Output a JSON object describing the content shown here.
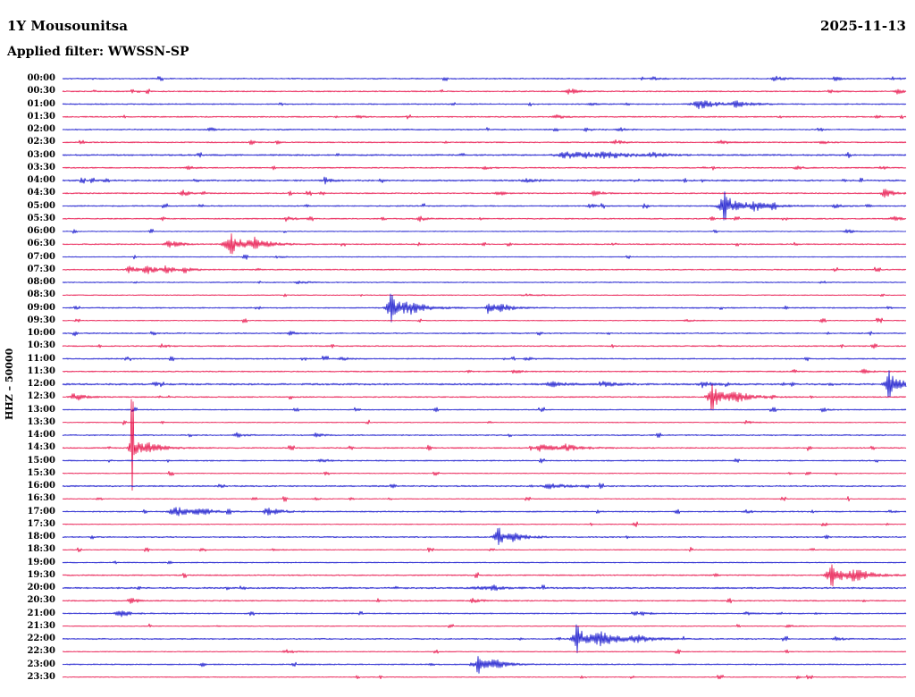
{
  "header": {
    "station": "1Y Mousounitsa",
    "date": "2025-11-13",
    "filter_label": "Applied filter: WWSSN-SP"
  },
  "axis": {
    "channel_label": "HHZ – 50000"
  },
  "colors": {
    "trace_blue": "#1414cc",
    "trace_red": "#e8124a",
    "text": "#000000",
    "background": "#ffffff"
  },
  "chart_data": {
    "type": "line",
    "subtype": "helicorder",
    "title": "1Y Mousounitsa",
    "date": "2025-11-13",
    "channel": "HHZ",
    "scale": "50000",
    "filter": "WWSSN-SP",
    "row_duration_minutes": 30,
    "event_format": "each event = [position_fraction_of_row, amplitude_px, width_fraction, optional_spike_px]",
    "rows": [
      {
        "t": "00:00",
        "c": "blue",
        "ev": [
          [
            0.7,
            2,
            0.004
          ],
          [
            0.845,
            3,
            0.006
          ],
          [
            0.915,
            2.5,
            0.005
          ],
          [
            0.985,
            2,
            0.004
          ]
        ]
      },
      {
        "t": "00:30",
        "c": "red",
        "ev": [
          [
            0.6,
            3.5,
            0.006
          ],
          [
            0.91,
            2,
            0.004
          ],
          [
            0.99,
            2.5,
            0.005
          ]
        ]
      },
      {
        "t": "01:00",
        "c": "blue",
        "ev": [
          [
            0.625,
            1.5,
            0.004
          ],
          [
            0.755,
            5,
            0.012
          ],
          [
            0.8,
            3,
            0.01
          ]
        ]
      },
      {
        "t": "01:30",
        "c": "red",
        "ev": [
          [
            0.35,
            1.5,
            0.004
          ],
          [
            0.585,
            2.5,
            0.005
          ]
        ]
      },
      {
        "t": "02:00",
        "c": "blue",
        "ev": [
          [
            0.175,
            2,
            0.004
          ],
          [
            0.62,
            2,
            0.004
          ],
          [
            0.66,
            2.5,
            0.004
          ]
        ]
      },
      {
        "t": "02:30",
        "c": "red",
        "ev": [
          [
            0.655,
            2.5,
            0.005
          ],
          [
            0.78,
            2.5,
            0.005
          ],
          [
            0.9,
            2,
            0.004
          ]
        ]
      },
      {
        "t": "03:00",
        "c": "blue",
        "base": 0.9,
        "ev": [
          [
            0.6,
            3.5,
            0.02
          ],
          [
            0.645,
            3.5,
            0.012
          ],
          [
            0.7,
            2.5,
            0.008
          ]
        ]
      },
      {
        "t": "03:30",
        "c": "red",
        "ev": [
          [
            0.148,
            2.5,
            0.004
          ],
          [
            0.5,
            2,
            0.004
          ],
          [
            0.87,
            2,
            0.004
          ],
          [
            0.97,
            2,
            0.004
          ]
        ]
      },
      {
        "t": "04:00",
        "c": "blue",
        "base": 0.9,
        "ev": [
          [
            0.31,
            2,
            0.006
          ],
          [
            0.55,
            1.5,
            0.01
          ]
        ]
      },
      {
        "t": "04:30",
        "c": "red",
        "ev": [
          [
            0.143,
            3,
            0.005
          ],
          [
            0.515,
            2,
            0.004
          ],
          [
            0.63,
            3,
            0.005
          ],
          [
            0.975,
            4.5,
            0.006
          ]
        ]
      },
      {
        "t": "05:00",
        "c": "blue",
        "ev": [
          [
            0.625,
            2.5,
            0.004
          ],
          [
            0.785,
            12,
            0.01,
            18
          ],
          [
            0.82,
            4,
            0.012
          ],
          [
            0.915,
            2.5,
            0.004
          ]
        ]
      },
      {
        "t": "05:30",
        "c": "red",
        "ev": [
          [
            0.265,
            2.5,
            0.005
          ],
          [
            0.424,
            2.5,
            0.005
          ],
          [
            0.985,
            3,
            0.005
          ]
        ]
      },
      {
        "t": "06:00",
        "c": "blue",
        "base": 0.5,
        "ev": [
          [
            0.93,
            2.5,
            0.004
          ]
        ]
      },
      {
        "t": "06:30",
        "c": "red",
        "ev": [
          [
            0.127,
            4,
            0.008
          ],
          [
            0.2,
            9,
            0.012,
            12
          ],
          [
            0.228,
            4,
            0.01
          ]
        ]
      },
      {
        "t": "07:00",
        "c": "blue",
        "base": 0.5,
        "ev": [
          [
            0.255,
            1.5,
            0.004
          ]
        ]
      },
      {
        "t": "07:30",
        "c": "red",
        "ev": [
          [
            0.08,
            4,
            0.006
          ],
          [
            0.1,
            5,
            0.006
          ],
          [
            0.122,
            4.5,
            0.006
          ],
          [
            0.145,
            3,
            0.005
          ]
        ]
      },
      {
        "t": "08:00",
        "c": "blue",
        "base": 0.6,
        "ev": [
          [
            0.28,
            1.5,
            0.006
          ]
        ]
      },
      {
        "t": "08:30",
        "c": "red",
        "base": 0.5,
        "ev": [
          [
            0.55,
            1.2,
            0.01
          ]
        ]
      },
      {
        "t": "09:00",
        "c": "blue",
        "ev": [
          [
            0.39,
            12,
            0.008,
            16
          ],
          [
            0.412,
            5,
            0.012
          ],
          [
            0.505,
            6,
            0.006
          ],
          [
            0.522,
            3,
            0.008
          ]
        ]
      },
      {
        "t": "09:30",
        "c": "red",
        "base": 0.5,
        "ev": [
          [
            0.74,
            1.2,
            0.004
          ]
        ]
      },
      {
        "t": "10:00",
        "c": "blue",
        "ev": [
          [
            0.27,
            2.5,
            0.004
          ]
        ]
      },
      {
        "t": "10:30",
        "c": "red",
        "ev": [
          [
            0.117,
            2,
            0.004
          ]
        ]
      },
      {
        "t": "11:00",
        "c": "blue",
        "ev": [
          [
            0.33,
            2.5,
            0.004
          ],
          [
            0.55,
            1.5,
            0.006
          ]
        ]
      },
      {
        "t": "11:30",
        "c": "red",
        "ev": [
          [
            0.535,
            2.5,
            0.004
          ],
          [
            0.95,
            2.5,
            0.005
          ]
        ]
      },
      {
        "t": "12:00",
        "c": "blue",
        "base": 1.0,
        "ev": [
          [
            0.58,
            2.5,
            0.01
          ],
          [
            0.64,
            2.5,
            0.01
          ],
          [
            0.76,
            2,
            0.008
          ],
          [
            0.98,
            11,
            0.008,
            16
          ]
        ]
      },
      {
        "t": "12:30",
        "c": "red",
        "ev": [
          [
            0.014,
            5,
            0.006
          ],
          [
            0.77,
            11,
            0.009,
            15
          ],
          [
            0.8,
            4,
            0.012
          ]
        ]
      },
      {
        "t": "13:00",
        "c": "blue",
        "base": 0.6,
        "ev": [
          [
            0.9,
            2.5,
            0.004
          ]
        ]
      },
      {
        "t": "13:30",
        "c": "red",
        "base": 0.5,
        "ev": [
          [
            0.81,
            2,
            0.004
          ]
        ]
      },
      {
        "t": "14:00",
        "c": "blue",
        "ev": [
          [
            0.207,
            2.5,
            0.005
          ],
          [
            0.3,
            2.5,
            0.004
          ]
        ]
      },
      {
        "t": "14:30",
        "c": "red",
        "ev": [
          [
            0.083,
            10,
            0.007,
            55
          ],
          [
            0.105,
            4,
            0.01
          ],
          [
            0.567,
            3.5,
            0.012
          ],
          [
            0.6,
            2.5,
            0.01
          ]
        ]
      },
      {
        "t": "15:00",
        "c": "blue",
        "ev": [
          [
            0.307,
            2.5,
            0.004
          ]
        ]
      },
      {
        "t": "15:30",
        "c": "red",
        "base": 0.5
      },
      {
        "t": "16:00",
        "c": "blue",
        "base": 0.8,
        "ev": [
          [
            0.578,
            2.5,
            0.012
          ]
        ]
      },
      {
        "t": "16:30",
        "c": "red",
        "base": 0.5,
        "ev": [
          [
            0.3,
            1.2,
            0.004
          ]
        ]
      },
      {
        "t": "17:00",
        "c": "blue",
        "ev": [
          [
            0.133,
            5.5,
            0.01
          ],
          [
            0.162,
            3,
            0.01
          ],
          [
            0.244,
            4.5,
            0.008
          ],
          [
            0.81,
            2,
            0.004
          ]
        ]
      },
      {
        "t": "17:30",
        "c": "red",
        "base": 0.5
      },
      {
        "t": "18:00",
        "c": "blue",
        "ev": [
          [
            0.517,
            7,
            0.008,
            10
          ],
          [
            0.535,
            3,
            0.01
          ]
        ]
      },
      {
        "t": "18:30",
        "c": "red",
        "base": 0.5,
        "ev": [
          [
            0.25,
            1.2,
            0.004
          ]
        ]
      },
      {
        "t": "19:00",
        "c": "blue",
        "base": 0.6
      },
      {
        "t": "19:30",
        "c": "red",
        "ev": [
          [
            0.912,
            10,
            0.01,
            13
          ],
          [
            0.94,
            5,
            0.012
          ]
        ]
      },
      {
        "t": "20:00",
        "c": "blue",
        "base": 0.9,
        "ev": [
          [
            0.5,
            1.5,
            0.02
          ]
        ]
      },
      {
        "t": "20:30",
        "c": "red",
        "ev": [
          [
            0.08,
            3.5,
            0.005
          ],
          [
            0.487,
            2.5,
            0.005
          ]
        ]
      },
      {
        "t": "21:00",
        "c": "blue",
        "ev": [
          [
            0.067,
            4.5,
            0.006
          ],
          [
            0.687,
            2.5,
            0.004
          ],
          [
            0.81,
            2,
            0.004
          ]
        ]
      },
      {
        "t": "21:30",
        "c": "red",
        "base": 0.5,
        "ev": [
          [
            0.86,
            1.5,
            0.004
          ]
        ]
      },
      {
        "t": "22:00",
        "c": "blue",
        "ev": [
          [
            0.61,
            12,
            0.009,
            16
          ],
          [
            0.64,
            6,
            0.015
          ],
          [
            0.68,
            3,
            0.012
          ],
          [
            0.917,
            2.5,
            0.004
          ]
        ]
      },
      {
        "t": "22:30",
        "c": "red",
        "base": 0.5,
        "ev": [
          [
            0.265,
            2.5,
            0.005
          ]
        ]
      },
      {
        "t": "23:00",
        "c": "blue",
        "ev": [
          [
            0.493,
            7,
            0.008,
            10
          ],
          [
            0.51,
            3,
            0.01
          ]
        ]
      },
      {
        "t": "23:30",
        "c": "red",
        "base": 0.5
      }
    ]
  }
}
